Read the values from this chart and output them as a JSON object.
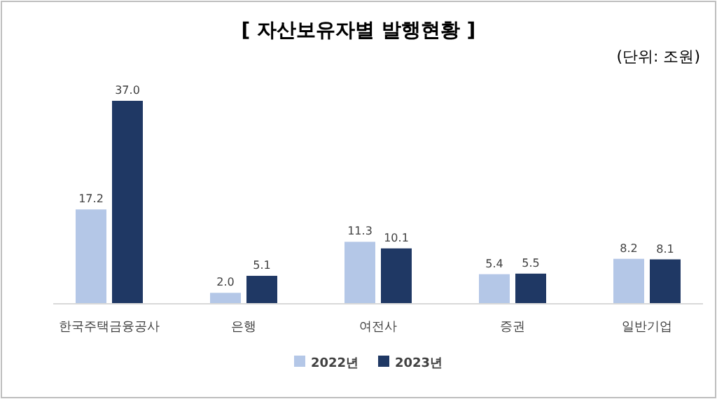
{
  "chart_data": {
    "type": "bar",
    "title": "[ 자산보유자별 발행현황 ]",
    "annotations": [
      "(단위: 조원)"
    ],
    "categories": [
      "한국주택금융공사",
      "은행",
      "여전사",
      "증권",
      "일반기업"
    ],
    "series": [
      {
        "name": "2022년",
        "color": "#b4c7e7",
        "values": [
          17.2,
          2,
          11.3,
          5.4,
          8.2
        ],
        "value_labels": [
          "17.2",
          "2.0",
          "11.3",
          "5.4",
          "8.2"
        ]
      },
      {
        "name": "2023년",
        "color": "#1f3864",
        "values": [
          37,
          5.1,
          10.1,
          5.5,
          8.1
        ],
        "value_labels": [
          "37.0",
          "5.1",
          "10.1",
          "5.5",
          "8.1"
        ]
      }
    ],
    "legend": "bottom"
  }
}
